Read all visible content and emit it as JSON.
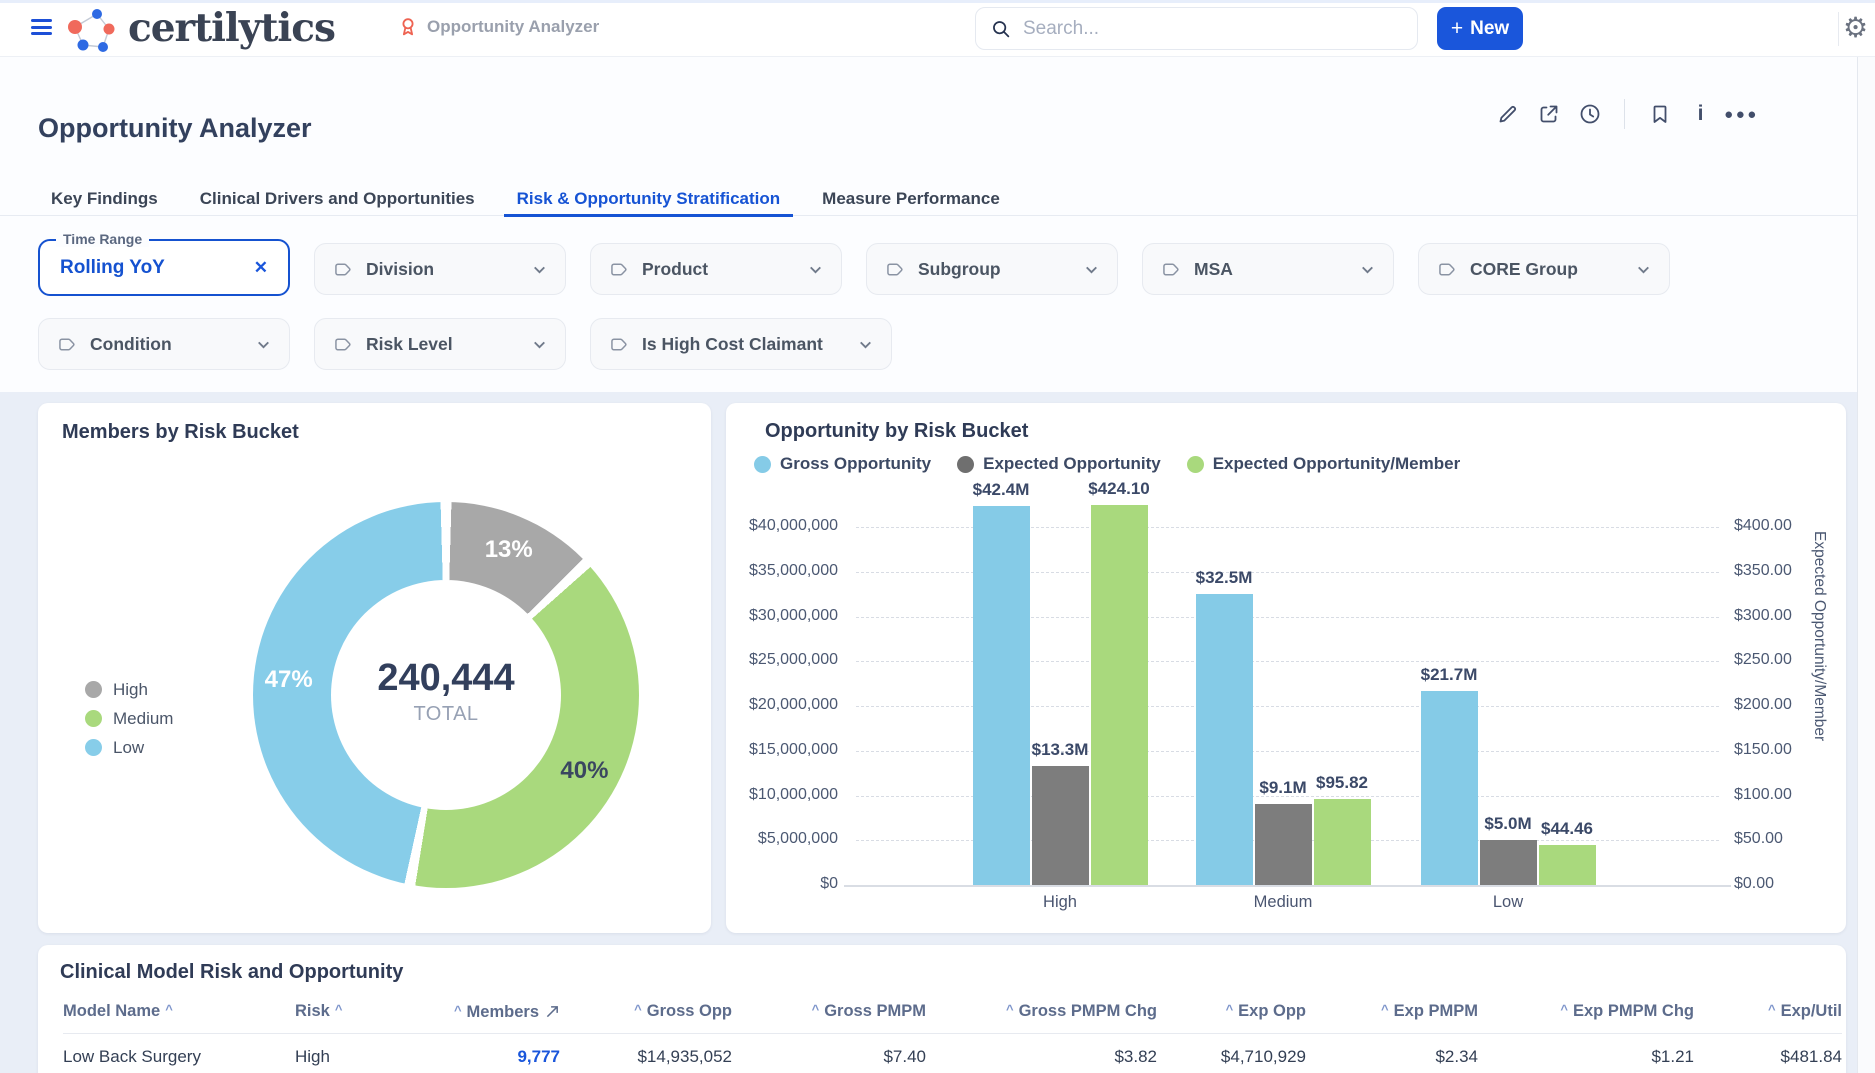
{
  "header": {
    "brand": "certilytics",
    "app_label": "Opportunity Analyzer",
    "search_placeholder": "Search...",
    "new_button": "New"
  },
  "page": {
    "title": "Opportunity Analyzer",
    "tabs": [
      {
        "label": "Key Findings",
        "active": false
      },
      {
        "label": "Clinical Drivers and Opportunities",
        "active": false
      },
      {
        "label": "Risk & Opportunity Stratification",
        "active": true
      },
      {
        "label": "Measure Performance",
        "active": false
      }
    ]
  },
  "filters": {
    "time_range": {
      "label": "Time Range",
      "value": "Rolling YoY"
    },
    "row1": [
      "Division",
      "Product",
      "Subgroup",
      "MSA",
      "CORE Group"
    ],
    "row2": [
      "Condition",
      "Risk Level",
      "Is High Cost Claimant"
    ]
  },
  "colors": {
    "accent": "#1a56db",
    "chart_blue": "#85cbe7",
    "chart_gray": "#7d7d7d",
    "chart_green": "#a9d97d",
    "donut_gray": "#a8a8a8"
  },
  "chart_data": [
    {
      "type": "pie",
      "title": "Members by Risk Bucket",
      "center_value": "240,444",
      "center_label": "TOTAL",
      "legend_position": "left",
      "slices": [
        {
          "label": "High",
          "pct": 13,
          "color": "#a8a8a8",
          "pct_label": "13%",
          "pct_label_color": "#ffffff"
        },
        {
          "label": "Medium",
          "pct": 40,
          "color": "#a9d97d",
          "pct_label": "40%",
          "pct_label_color": "#3a4660"
        },
        {
          "label": "Low",
          "pct": 47,
          "color": "#87cde9",
          "pct_label": "47%",
          "pct_label_color": "#ffffff"
        }
      ]
    },
    {
      "type": "bar",
      "title": "Opportunity by Risk Bucket",
      "categories": [
        "High",
        "Medium",
        "Low"
      ],
      "series": [
        {
          "name": "Gross Opportunity",
          "axis": "left",
          "color": "#85cbe7",
          "values": [
            42400000,
            32500000,
            21700000
          ],
          "labels": [
            "$42.4M",
            "$32.5M",
            "$21.7M"
          ]
        },
        {
          "name": "Expected Opportunity",
          "axis": "left",
          "color": "#7d7d7d",
          "values": [
            13300000,
            9100000,
            5000000
          ],
          "labels": [
            "$13.3M",
            "$9.1M",
            "$5.0M"
          ]
        },
        {
          "name": "Expected Opportunity/Member",
          "axis": "right",
          "color": "#a9d97d",
          "values": [
            424.1,
            95.82,
            44.46
          ],
          "labels": [
            "$424.10",
            "$95.82",
            "$44.46"
          ]
        }
      ],
      "left_axis": {
        "min": 0,
        "max": 40000000,
        "step": 5000000,
        "ticks": [
          "$0",
          "$5,000,000",
          "$10,000,000",
          "$15,000,000",
          "$20,000,000",
          "$25,000,000",
          "$30,000,000",
          "$35,000,000",
          "$40,000,000"
        ]
      },
      "right_axis": {
        "min": 0,
        "max": 400,
        "step": 50,
        "title": "Expected Opportunity/Member",
        "ticks": [
          "$0.00",
          "$50.00",
          "$100.00",
          "$150.00",
          "$200.00",
          "$250.00",
          "$300.00",
          "$350.00",
          "$400.00"
        ]
      },
      "grid": "dashed-horizontal",
      "legend_position": "top"
    }
  ],
  "table": {
    "title": "Clinical Model Risk and Opportunity",
    "columns": [
      {
        "label": "Model Name",
        "align": "left",
        "caret": "after"
      },
      {
        "label": "Risk",
        "align": "left",
        "caret": "after"
      },
      {
        "label": "Members",
        "align": "right",
        "caret": "before",
        "trend_icon": true
      },
      {
        "label": "Gross Opp",
        "align": "right",
        "caret": "before"
      },
      {
        "label": "Gross PMPM",
        "align": "right",
        "caret": "before"
      },
      {
        "label": "Gross PMPM Chg",
        "align": "right",
        "caret": "before"
      },
      {
        "label": "Exp Opp",
        "align": "right",
        "caret": "before"
      },
      {
        "label": "Exp PMPM",
        "align": "right",
        "caret": "before"
      },
      {
        "label": "Exp PMPM Chg",
        "align": "right",
        "caret": "before"
      },
      {
        "label": "Exp/Util",
        "align": "right",
        "caret": "before"
      }
    ],
    "link_column": 2,
    "rows": [
      [
        "Low Back Surgery",
        "High",
        "9,777",
        "$14,935,052",
        "$7.40",
        "$3.82",
        "$4,710,929",
        "$2.34",
        "$1.21",
        "$481.84"
      ]
    ]
  }
}
